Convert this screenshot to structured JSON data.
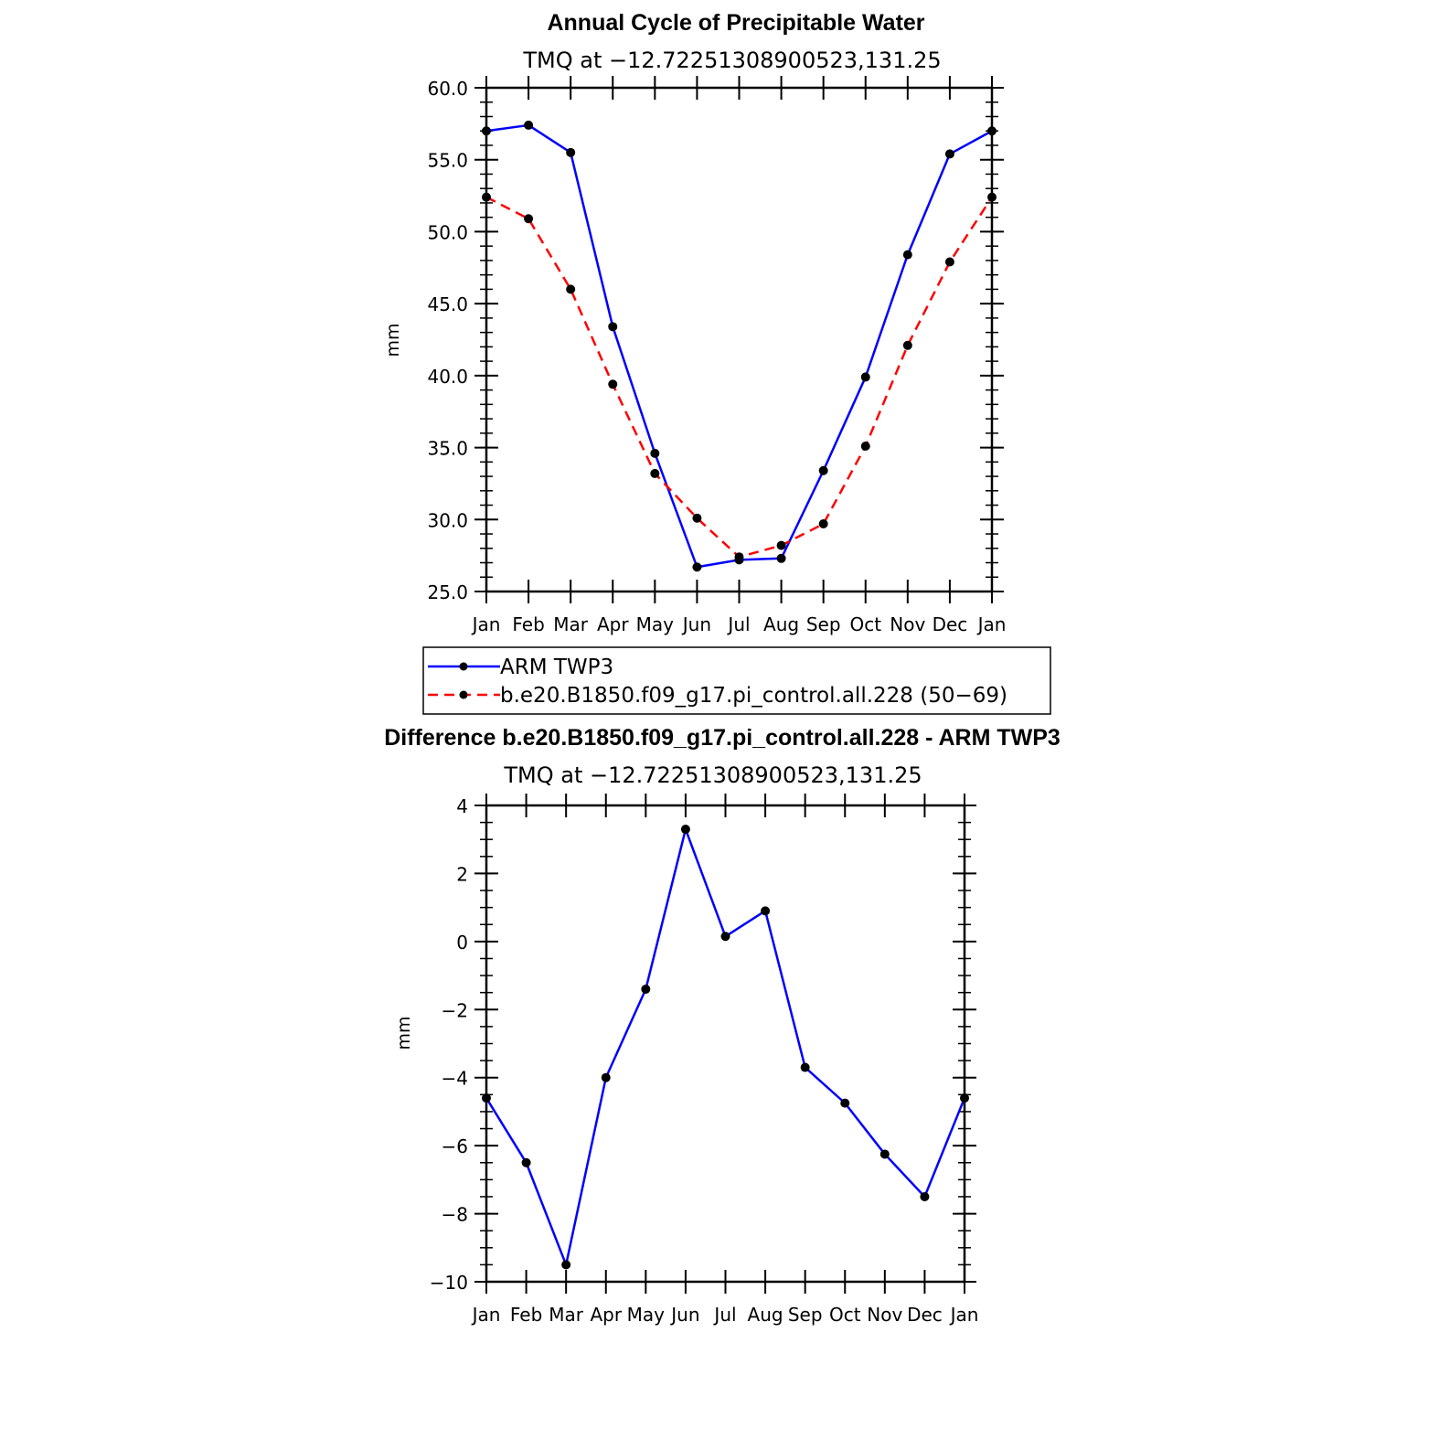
{
  "chart_data": [
    {
      "type": "line",
      "title": "Annual Cycle of Precipitable Water",
      "subtitle": "TMQ at −12.72251308900523,131.25",
      "xlabel": "",
      "ylabel": "mm",
      "categories": [
        "Jan",
        "Feb",
        "Mar",
        "Apr",
        "May",
        "Jun",
        "Jul",
        "Aug",
        "Sep",
        "Oct",
        "Nov",
        "Dec",
        "Jan"
      ],
      "ylim": [
        25.0,
        60.0
      ],
      "yticks": [
        "25.0",
        "30.0",
        "35.0",
        "40.0",
        "45.0",
        "50.0",
        "55.0",
        "60.0"
      ],
      "legend_position": "below",
      "series": [
        {
          "name": "ARM TWP3",
          "color": "#0000ff",
          "dash": "solid",
          "values": [
            57.0,
            57.4,
            55.5,
            43.4,
            34.6,
            26.7,
            27.2,
            27.3,
            33.4,
            39.9,
            48.4,
            55.4,
            57.0
          ]
        },
        {
          "name": "b.e20.B1850.f09_g17.pi_control.all.228 (50−69)",
          "color": "#ff0000",
          "dash": "dashed",
          "values": [
            52.4,
            50.9,
            46.0,
            39.4,
            33.2,
            30.1,
            27.4,
            28.2,
            29.7,
            35.1,
            42.1,
            47.9,
            52.4
          ]
        }
      ]
    },
    {
      "type": "line",
      "title": "Difference b.e20.B1850.f09_g17.pi_control.all.228 - ARM TWP3",
      "subtitle": "TMQ at −12.72251308900523,131.25",
      "xlabel": "",
      "ylabel": "mm",
      "categories": [
        "Jan",
        "Feb",
        "Mar",
        "Apr",
        "May",
        "Jun",
        "Jul",
        "Aug",
        "Sep",
        "Oct",
        "Nov",
        "Dec",
        "Jan"
      ],
      "ylim": [
        -10,
        4
      ],
      "yticks": [
        "−10",
        "−8",
        "−6",
        "−4",
        "−2",
        "0",
        "2",
        "4"
      ],
      "series": [
        {
          "name": "Difference",
          "color": "#0000ff",
          "dash": "solid",
          "values": [
            -4.6,
            -6.5,
            -9.5,
            -4.0,
            -1.4,
            3.3,
            0.15,
            0.9,
            -3.7,
            -4.75,
            -6.25,
            -7.5,
            -4.6
          ]
        }
      ]
    }
  ]
}
